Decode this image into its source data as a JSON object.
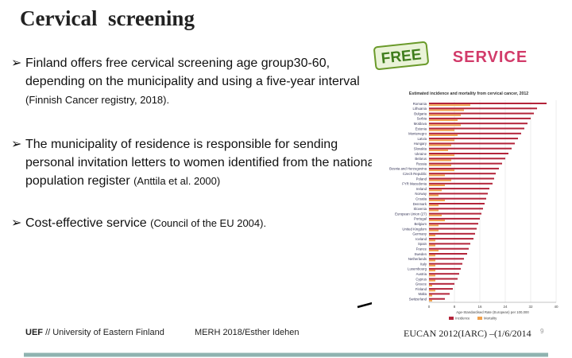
{
  "header": {
    "title": "Cervical  screening"
  },
  "bullets": [
    {
      "text": "Finland offers free cervical screening age group30-60, depending on the municipality and using a five-year interval",
      "citation": "(Finnish Cancer registry, 2018)."
    },
    {
      "text": "The municipality of residence is responsible for sending personal invitation letters to women identified from the national population register",
      "citation": "(Anttila et al. 2000)"
    },
    {
      "text": "Cost-effective service",
      "citation": "(Council of the EU 2004)."
    }
  ],
  "badges": {
    "free": "FREE",
    "service": "SERVICE"
  },
  "inset_chart": {
    "type": "bar",
    "title": "Estimated incidence and mortality from cervical cancer, 2012",
    "categories": [
      "Romania",
      "Lithuania",
      "Bulgaria",
      "Serbia",
      "Moldova",
      "Estonia",
      "Montenegro",
      "Latvia",
      "Hungary",
      "Slovakia",
      "Ukraine",
      "Belarus",
      "Russia",
      "Bosnia and Herzegovina",
      "Czech Republic",
      "Poland",
      "FYR Macedonia",
      "Ireland",
      "Norway",
      "Croatia",
      "Denmark",
      "Slovenia",
      "European Union (27)",
      "Portugal",
      "Belgium",
      "United Kingdom",
      "Germany",
      "Iceland",
      "Spain",
      "France",
      "Sweden",
      "Netherlands",
      "Italy",
      "Luxembourg",
      "Austria",
      "Cyprus",
      "Greece",
      "Finland",
      "Malta",
      "Switzerland"
    ],
    "series": [
      {
        "name": "Incidence",
        "color": "#b3243a",
        "values": [
          37,
          34,
          33,
          32,
          31,
          30,
          29,
          28,
          27,
          26,
          25,
          24,
          23,
          22,
          21,
          20.5,
          20,
          19,
          18.5,
          18,
          17.5,
          17,
          16.5,
          16,
          15.5,
          15,
          14.5,
          14,
          13,
          12.5,
          12,
          11,
          10.5,
          10,
          9.5,
          9,
          8,
          7.5,
          6.5,
          5
        ]
      },
      {
        "name": "Mortality",
        "color": "#f0a04a",
        "values": [
          13,
          11,
          10,
          9,
          10,
          8,
          9,
          8,
          7,
          6,
          8,
          7,
          7,
          8,
          5,
          7,
          5,
          4,
          3,
          5,
          3,
          3,
          4,
          5,
          3,
          3,
          2,
          2,
          2,
          3,
          2,
          2,
          2,
          2,
          2,
          2,
          1,
          2,
          1,
          1
        ]
      }
    ],
    "xlabel": "Age-Standardised Rate (European) per 100,000",
    "xlim": [
      0,
      40
    ],
    "xticks": [
      0,
      8,
      16,
      24,
      32,
      40
    ]
  },
  "footer": {
    "org_short": "UEF",
    "org_long": "// University of Eastern Finland",
    "author": "MERH 2018/Esther Idehen",
    "source": "EUCAN 2012(IARC) –(1/6/2014",
    "page": "9"
  }
}
